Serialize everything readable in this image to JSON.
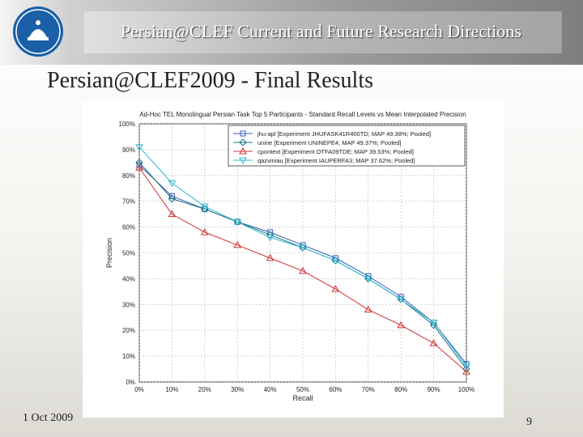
{
  "header": {
    "title": "Persian@CLEF Current and Future Research Directions"
  },
  "slide": {
    "title": "Persian@CLEF2009 - Final Results"
  },
  "footer": {
    "date": "1 Oct 2009",
    "page": "9"
  },
  "logo": {
    "icon": "university-of-tehran-logo-icon",
    "color": "#1a5fa8"
  },
  "chart_data": {
    "type": "line",
    "title": "Ad-Hoc TEL Monolingual Persian Task Top 5 Participants - Standard Recall Levels vs Mean Interpolated Precision",
    "xlabel": "Recall",
    "ylabel": "Precision",
    "x": [
      0,
      10,
      20,
      30,
      40,
      50,
      60,
      70,
      80,
      90,
      100
    ],
    "xlim": [
      0,
      100
    ],
    "ylim": [
      0,
      100
    ],
    "xticks": [
      "0%",
      "10%",
      "20%",
      "30%",
      "40%",
      "50%",
      "60%",
      "70%",
      "80%",
      "90%",
      "100%"
    ],
    "yticks": [
      "0%",
      "10%",
      "20%",
      "30%",
      "40%",
      "50%",
      "60%",
      "70%",
      "80%",
      "90%",
      "100%"
    ],
    "grid": true,
    "legend_position": "top-right",
    "series": [
      {
        "name": "jhu-apl [Experiment JHUFASK41R400TD; MAP 49.38%; Pooled]",
        "color": "#2e5fc0",
        "marker": "square",
        "values": [
          84,
          72,
          67,
          62,
          58,
          53,
          48,
          41,
          33,
          23,
          7
        ]
      },
      {
        "name": "unine [Experiment UNINEPE4; MAP 49.37%; Pooled]",
        "color": "#1f6f80",
        "marker": "diamond",
        "values": [
          85,
          71,
          67,
          62,
          57,
          52,
          47,
          40,
          32,
          22,
          5
        ]
      },
      {
        "name": "cpontext [Experiment OTFA09TDE; MAP 39.53%; Pooled]",
        "color": "#d03030",
        "marker": "triangle-up",
        "values": [
          83,
          65,
          58,
          53,
          48,
          43,
          36,
          28,
          22,
          15,
          4
        ]
      },
      {
        "name": "qazviniau [Experiment IAUPERFA3; MAP 37.62%; Pooled]",
        "color": "#30b8d0",
        "marker": "triangle-down",
        "values": [
          91,
          77,
          68,
          62,
          56,
          52,
          47,
          40,
          32,
          23,
          6
        ]
      }
    ]
  }
}
